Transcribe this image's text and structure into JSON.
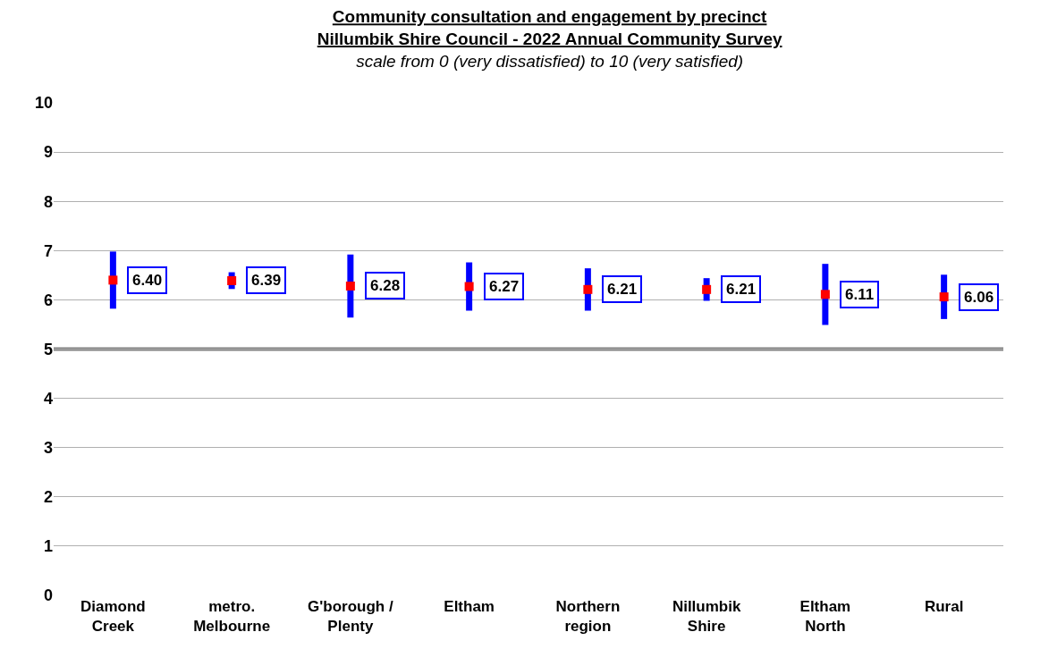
{
  "chart_data": {
    "type": "scatter",
    "title": "Community consultation and engagement by precinct\nNillumbik Shire Council - 2022 Annual Community Survey",
    "subtitle": "scale from 0 (very dissatisfied) to 10 (very satisfied)",
    "categories": [
      "Diamond Creek",
      "metro. Melbourne",
      "G'borough / Plenty",
      "Eltham",
      "Northern region",
      "Nillumbik Shire",
      "Eltham North",
      "Rural"
    ],
    "series": [
      {
        "color": "#ff0000",
        "values": [
          6.4,
          6.39,
          6.28,
          6.27,
          6.21,
          6.21,
          6.11,
          6.06
        ],
        "errors": [
          0.58,
          0.17,
          0.64,
          0.49,
          0.43,
          0.23,
          0.62,
          0.45
        ]
      }
    ],
    "value_labels": [
      "6.40",
      "6.39",
      "6.28",
      "6.27",
      "6.21",
      "6.21",
      "6.11",
      "6.06"
    ],
    "marker": "square",
    "ylim": [
      0,
      10
    ],
    "yticks": [
      0,
      1,
      2,
      3,
      4,
      5,
      6,
      7,
      8,
      9,
      10
    ],
    "grid": "y",
    "ref_lines": [
      {
        "axis": "y",
        "value": 5,
        "color": "#808080"
      }
    ]
  }
}
